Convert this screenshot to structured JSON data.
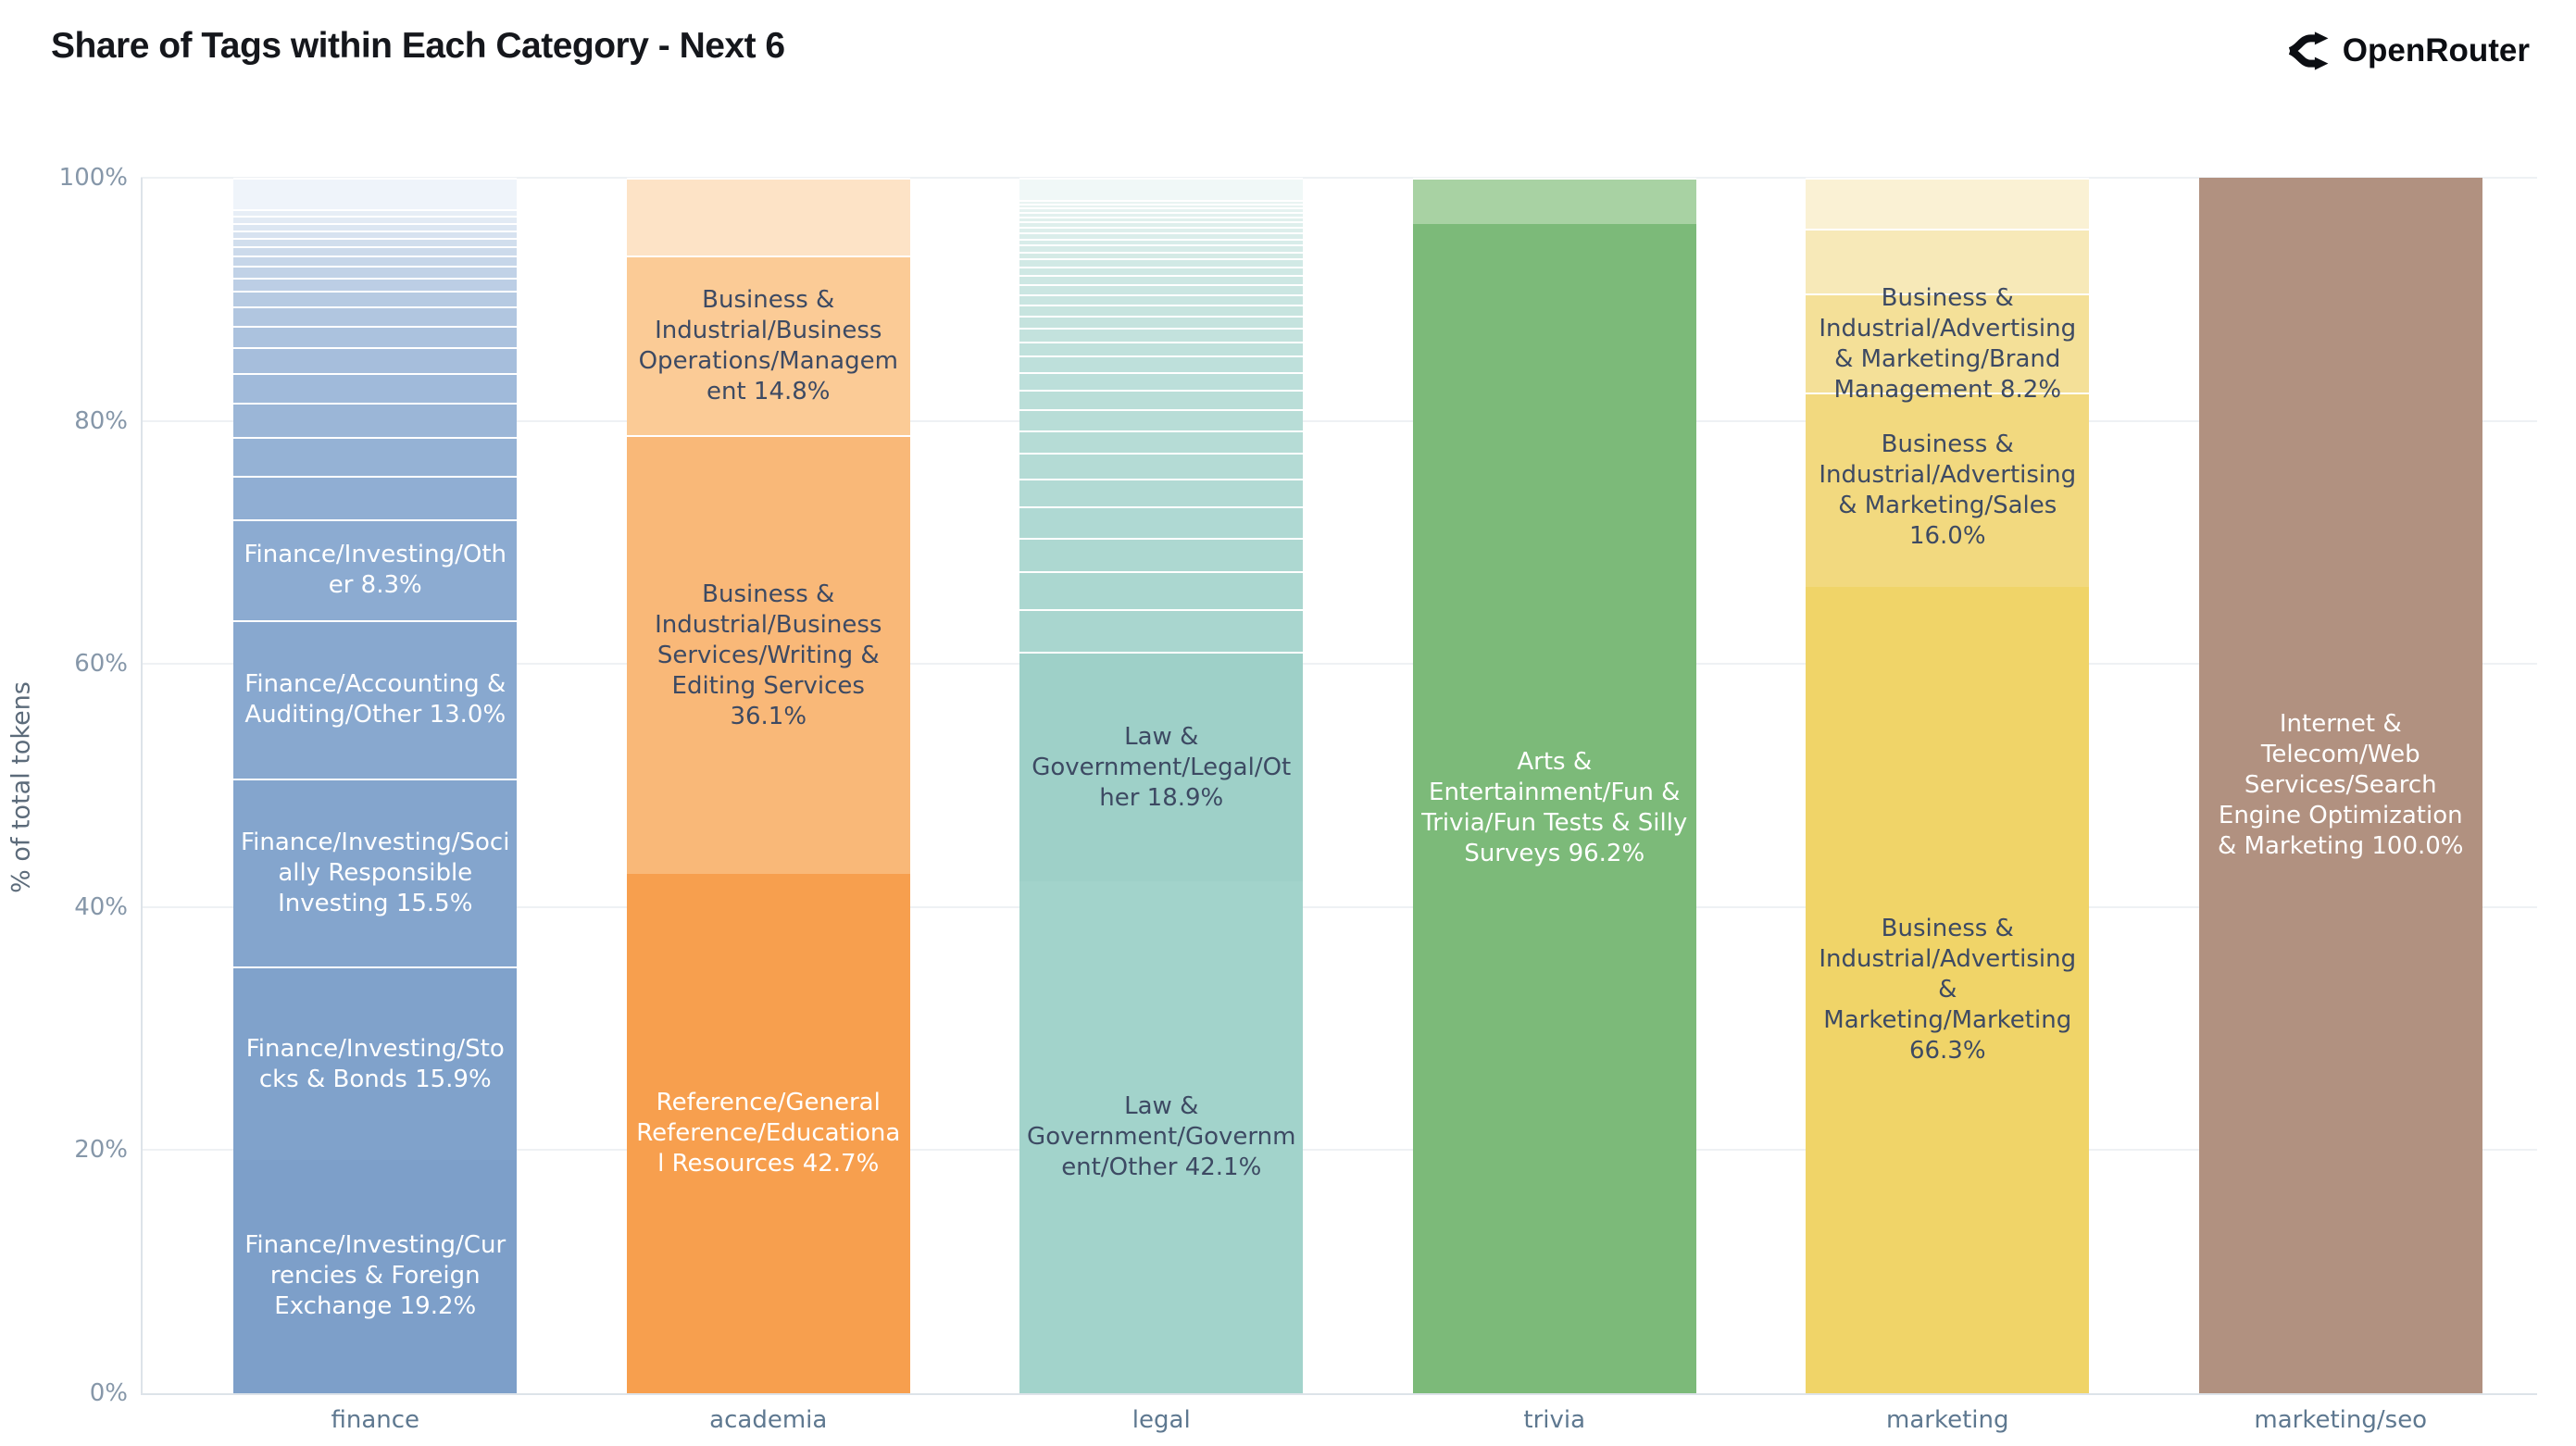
{
  "header": {
    "title": "Share of Tags within Each Category - Next 6",
    "brand": "OpenRouter"
  },
  "chart_data": {
    "type": "bar",
    "stacked": true,
    "normalized": "percent",
    "title": "Share of Tags within Each Category - Next 6",
    "xlabel": "",
    "ylabel": "% of total tokens",
    "ylim": [
      0,
      100
    ],
    "yticks": [
      0,
      20,
      40,
      60,
      80,
      100
    ],
    "ytick_labels": [
      "0%",
      "20%",
      "40%",
      "60%",
      "80%",
      "100%"
    ],
    "grid": true,
    "legend": "none",
    "label_colors": {
      "light": "#ffffff",
      "dark": "#3d4a63"
    },
    "categories": [
      "finance",
      "academia",
      "legal",
      "trivia",
      "marketing",
      "marketing/seo"
    ],
    "bars": [
      {
        "category": "finance",
        "segments": [
          {
            "tag": "Finance/Investing/Currencies & Foreign Exchange",
            "pct": 19.2,
            "color": "#7d9fc9",
            "text": "light"
          },
          {
            "tag": "Finance/Investing/Stocks & Bonds",
            "pct": 15.9,
            "color": "#80a2cb",
            "text": "light"
          },
          {
            "tag": "Finance/Investing/Socially Responsible Investing",
            "pct": 15.5,
            "color": "#84a5cd",
            "text": "light"
          },
          {
            "tag": "Finance/Accounting & Auditing/Other",
            "pct": 13.0,
            "color": "#88a8cf",
            "text": "light"
          },
          {
            "tag": "Finance/Investing/Other",
            "pct": 8.3,
            "color": "#8cabd1",
            "text": "light"
          },
          {
            "tag": null,
            "pct": 3.6,
            "color": "#90aed3"
          },
          {
            "tag": null,
            "pct": 3.2,
            "color": "#95b2d5"
          },
          {
            "tag": null,
            "pct": 2.8,
            "color": "#9bb6d7"
          },
          {
            "tag": null,
            "pct": 2.45,
            "color": "#a0bada"
          },
          {
            "tag": null,
            "pct": 2.1,
            "color": "#a6bedc"
          },
          {
            "tag": null,
            "pct": 1.8,
            "color": "#abc2de"
          },
          {
            "tag": null,
            "pct": 1.55,
            "color": "#b1c6e0"
          },
          {
            "tag": null,
            "pct": 1.3,
            "color": "#b6cae2"
          },
          {
            "tag": null,
            "pct": 1.1,
            "color": "#bccee5"
          },
          {
            "tag": null,
            "pct": 0.95,
            "color": "#c1d2e7"
          },
          {
            "tag": null,
            "pct": 0.85,
            "color": "#c6d6e9"
          },
          {
            "tag": null,
            "pct": 0.75,
            "color": "#ccdaeb"
          },
          {
            "tag": null,
            "pct": 0.7,
            "color": "#d1deed"
          },
          {
            "tag": null,
            "pct": 0.65,
            "color": "#d7e2f0"
          },
          {
            "tag": null,
            "pct": 0.6,
            "color": "#dce6f2"
          },
          {
            "tag": null,
            "pct": 0.55,
            "color": "#e2eaf4"
          },
          {
            "tag": null,
            "pct": 0.55,
            "color": "#e7eef6"
          },
          {
            "tag": null,
            "pct": 2.6,
            "color": "#eff4fa"
          }
        ]
      },
      {
        "category": "academia",
        "segments": [
          {
            "tag": "Reference/General Reference/Educational Resources",
            "pct": 42.7,
            "color": "#f79f4e",
            "text": "light"
          },
          {
            "tag": "Business & Industrial/Business Services/Writing & Editing Services",
            "pct": 36.1,
            "color": "#f9b878",
            "text": "dark"
          },
          {
            "tag": "Business & Industrial/Business Operations/Management",
            "pct": 14.8,
            "color": "#fbcb96",
            "text": "dark"
          },
          {
            "tag": null,
            "pct": 6.4,
            "color": "#fde3c6"
          }
        ]
      },
      {
        "category": "legal",
        "segments": [
          {
            "tag": "Law & Government/Government/Other",
            "pct": 42.1,
            "color": "#a2d3cb",
            "text": "dark"
          },
          {
            "tag": "Law & Government/Legal/Other",
            "pct": 18.9,
            "color": "#9ed0c8",
            "text": "dark"
          },
          {
            "tag": null,
            "pct": 3.5,
            "color": "#a9d6cf"
          },
          {
            "tag": null,
            "pct": 3.1,
            "color": "#abd7d0"
          },
          {
            "tag": null,
            "pct": 2.8,
            "color": "#add8d1"
          },
          {
            "tag": null,
            "pct": 2.55,
            "color": "#afd9d3"
          },
          {
            "tag": null,
            "pct": 2.3,
            "color": "#b2dad4"
          },
          {
            "tag": null,
            "pct": 2.1,
            "color": "#b4dbd5"
          },
          {
            "tag": null,
            "pct": 1.9,
            "color": "#b6dcd6"
          },
          {
            "tag": null,
            "pct": 1.75,
            "color": "#b8ddd7"
          },
          {
            "tag": null,
            "pct": 1.6,
            "color": "#baded8"
          },
          {
            "tag": null,
            "pct": 1.45,
            "color": "#bcdfda"
          },
          {
            "tag": null,
            "pct": 1.3,
            "color": "#bee0db"
          },
          {
            "tag": null,
            "pct": 1.2,
            "color": "#c0e1dc"
          },
          {
            "tag": null,
            "pct": 1.1,
            "color": "#c3e2dd"
          },
          {
            "tag": null,
            "pct": 1.0,
            "color": "#c5e3de"
          },
          {
            "tag": null,
            "pct": 0.95,
            "color": "#c7e4df"
          },
          {
            "tag": null,
            "pct": 0.85,
            "color": "#c9e5e1"
          },
          {
            "tag": null,
            "pct": 0.8,
            "color": "#cbe6e2"
          },
          {
            "tag": null,
            "pct": 0.75,
            "color": "#cde7e3"
          },
          {
            "tag": null,
            "pct": 0.7,
            "color": "#cfe8e4"
          },
          {
            "tag": null,
            "pct": 0.65,
            "color": "#d1e9e5"
          },
          {
            "tag": null,
            "pct": 0.6,
            "color": "#d4eae6"
          },
          {
            "tag": null,
            "pct": 0.55,
            "color": "#d6ebe8"
          },
          {
            "tag": null,
            "pct": 0.5,
            "color": "#d8ece9"
          },
          {
            "tag": null,
            "pct": 0.5,
            "color": "#daedea"
          },
          {
            "tag": null,
            "pct": 0.45,
            "color": "#dceeeb"
          },
          {
            "tag": null,
            "pct": 0.45,
            "color": "#deefec"
          },
          {
            "tag": null,
            "pct": 0.4,
            "color": "#e0f0ed"
          },
          {
            "tag": null,
            "pct": 0.4,
            "color": "#e2f1ef"
          },
          {
            "tag": null,
            "pct": 0.35,
            "color": "#e5f2f0"
          },
          {
            "tag": null,
            "pct": 0.35,
            "color": "#e7f3f1"
          },
          {
            "tag": null,
            "pct": 0.3,
            "color": "#e9f4f2"
          },
          {
            "tag": null,
            "pct": 1.8,
            "color": "#f0f8f7"
          }
        ]
      },
      {
        "category": "trivia",
        "segments": [
          {
            "tag": "Arts & Entertainment/Fun & Trivia/Fun Tests & Silly Surveys",
            "pct": 96.2,
            "color": "#7cba79",
            "text": "light"
          },
          {
            "tag": null,
            "pct": 3.8,
            "color": "#a8d2a3"
          }
        ]
      },
      {
        "category": "marketing",
        "segments": [
          {
            "tag": "Business & Industrial/Advertising & Marketing/Marketing",
            "pct": 66.3,
            "color": "#f0d468",
            "text": "dark"
          },
          {
            "tag": "Business & Industrial/Advertising & Marketing/Sales",
            "pct": 16.0,
            "color": "#f2d97f",
            "text": "dark"
          },
          {
            "tag": "Business & Industrial/Advertising & Marketing/Brand Management",
            "pct": 8.2,
            "color": "#f4e098",
            "text": "dark"
          },
          {
            "tag": null,
            "pct": 5.3,
            "color": "#f7e9b8"
          },
          {
            "tag": null,
            "pct": 4.2,
            "color": "#faf1d4"
          }
        ]
      },
      {
        "category": "marketing/seo",
        "segments": [
          {
            "tag": "Internet & Telecom/Web Services/Search Engine Optimization & Marketing",
            "pct": 100.0,
            "color": "#b19180",
            "text": "light"
          }
        ]
      }
    ]
  }
}
